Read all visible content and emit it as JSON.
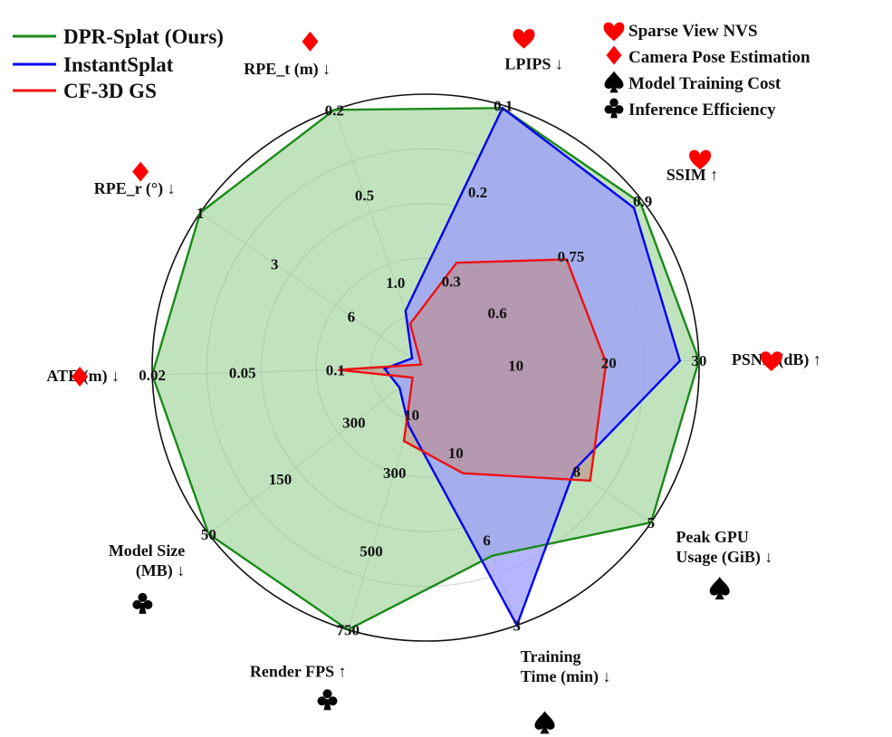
{
  "chart_data": {
    "type": "radar",
    "legend": {
      "placement": "top-left",
      "series_entries": [
        "DPR-Splat (Ours)",
        "InstantSplat",
        "CF-3D GS"
      ]
    },
    "category_legend": {
      "placement": "top-right",
      "entries": [
        {
          "icon": "heart-icon",
          "label": "Sparse View NVS",
          "color": "#ff0000"
        },
        {
          "icon": "diamond-icon",
          "label": "Camera Pose Estimation",
          "color": "#ff0000"
        },
        {
          "icon": "spade-icon",
          "label": "Model Training Cost",
          "color": "#000000"
        },
        {
          "icon": "club-icon",
          "label": "Inference Efficiency",
          "color": "#000000"
        }
      ]
    },
    "axes": [
      {
        "label": [
          "LPIPS ↓"
        ],
        "icon": "heart-icon",
        "ticks": [
          "0.3",
          "0.2",
          "0.1"
        ]
      },
      {
        "label": [
          "SSIM ↑"
        ],
        "icon": "heart-icon",
        "ticks": [
          "0.6",
          "0.75",
          "0.9"
        ]
      },
      {
        "label": [
          "PSNR (dB) ↑"
        ],
        "icon": "heart-icon",
        "ticks": [
          "10",
          "20",
          "30"
        ]
      },
      {
        "label": [
          "Peak GPU",
          "Usage (GiB) ↓"
        ],
        "icon": "spade-icon",
        "ticks": [
          "8",
          "5"
        ]
      },
      {
        "label": [
          "Training",
          "Time (min) ↓"
        ],
        "icon": "spade-icon",
        "ticks": [
          "10",
          "6",
          "3"
        ]
      },
      {
        "label": [
          "Render FPS ↑"
        ],
        "icon": "club-icon",
        "ticks": [
          "10",
          "300",
          "500",
          "750"
        ]
      },
      {
        "label": [
          "Model Size",
          "(MB) ↓"
        ],
        "icon": "club-icon",
        "ticks": [
          "300",
          "150",
          "50"
        ]
      },
      {
        "label": [
          "ATE (m) ↓"
        ],
        "icon": "diamond-icon",
        "ticks": [
          "0.1",
          "0.05",
          "0.02"
        ]
      },
      {
        "label": [
          "RPE_r (°) ↓"
        ],
        "icon": "diamond-icon",
        "ticks": [
          "6",
          "3",
          "1"
        ]
      },
      {
        "label": [
          "RPE_t (m) ↓"
        ],
        "icon": "diamond-icon",
        "ticks": [
          "1.0",
          "0.5",
          "0.2"
        ]
      }
    ],
    "grid": true,
    "radial_range": [
      0,
      1
    ],
    "series": [
      {
        "name": "DPR-Splat (Ours)",
        "color": "#1a8a1a",
        "fill": "#8ccc86",
        "fill_opacity": 0.55,
        "values": [
          0.99,
          0.99,
          1.0,
          1.0,
          0.73,
          1.0,
          1.0,
          1.0,
          1.0,
          1.0
        ]
      },
      {
        "name": "InstantSplat",
        "color": "#0000ee",
        "fill": "#9a9aff",
        "fill_opacity": 0.72,
        "values": [
          0.99,
          0.96,
          0.93,
          0.66,
          1.0,
          0.22,
          0.12,
          0.15,
          0.06,
          0.22
        ]
      },
      {
        "name": "CF-3D GS",
        "color": "#ee1111",
        "fill": "#c08a88",
        "fill_opacity": 0.6,
        "values": [
          0.4,
          0.65,
          0.66,
          0.73,
          0.41,
          0.28,
          0.06,
          0.32,
          0.02,
          0.17
        ]
      }
    ]
  }
}
